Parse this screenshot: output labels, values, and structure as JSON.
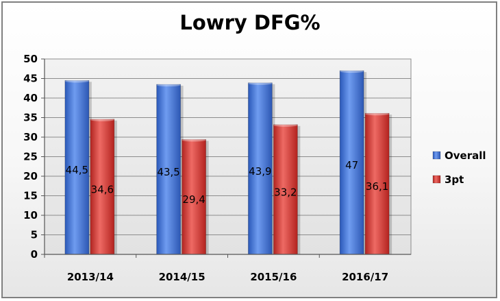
{
  "chart_data": {
    "type": "bar",
    "title": "Lowry DFG%",
    "xlabel": "",
    "ylabel": "",
    "categories": [
      "2013/14",
      "2014/15",
      "2015/16",
      "2016/17"
    ],
    "series": [
      {
        "name": "Overall",
        "values": [
          44.5,
          43.5,
          43.9,
          47
        ],
        "labels": [
          "44,5",
          "43,5",
          "43,9",
          "47"
        ],
        "color": "#3f6fd0"
      },
      {
        "name": "3pt",
        "values": [
          34.6,
          29.4,
          33.2,
          36.1
        ],
        "labels": [
          "34,6",
          "29,4",
          "33,2",
          "36,1"
        ],
        "color": "#d43a35"
      }
    ],
    "ylim": [
      0,
      50
    ],
    "yticks": [
      "0",
      "5",
      "10",
      "15",
      "20",
      "25",
      "30",
      "35",
      "40",
      "45",
      "50"
    ],
    "grid": true,
    "legend_position": "right",
    "background": "#ffffff",
    "plot_background": "#ebebeb"
  }
}
